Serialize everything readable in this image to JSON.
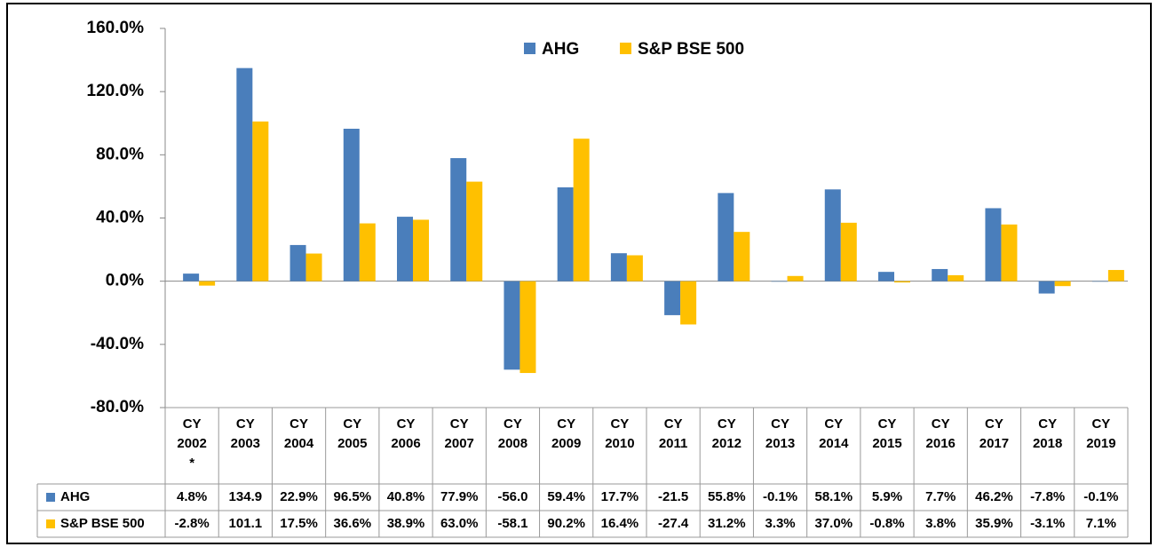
{
  "chart_data": {
    "type": "bar",
    "categories": [
      "CY 2002 *",
      "CY 2003",
      "CY 2004",
      "CY 2005",
      "CY 2006",
      "CY 2007",
      "CY 2008",
      "CY 2009",
      "CY 2010",
      "CY 2011",
      "CY 2012",
      "CY 2013",
      "CY 2014",
      "CY 2015",
      "CY 2016",
      "CY 2017",
      "CY 2018",
      "CY 2019"
    ],
    "series": [
      {
        "name": "AHG",
        "color": "#4a7ebb",
        "values": [
          4.8,
          134.9,
          22.9,
          96.5,
          40.8,
          77.9,
          -56.0,
          59.4,
          17.7,
          -21.5,
          55.8,
          -0.1,
          58.1,
          5.9,
          7.7,
          46.2,
          -7.8,
          -0.1
        ],
        "value_labels": [
          "4.8%",
          "134.9",
          "22.9%",
          "96.5%",
          "40.8%",
          "77.9%",
          "-56.0",
          "59.4%",
          "17.7%",
          "-21.5",
          "55.8%",
          "-0.1%",
          "58.1%",
          "5.9%",
          "7.7%",
          "46.2%",
          "-7.8%",
          "-0.1%"
        ]
      },
      {
        "name": "S&P BSE 500",
        "color": "#ffc000",
        "values": [
          -2.8,
          101.1,
          17.5,
          36.6,
          38.9,
          63.0,
          -58.1,
          90.2,
          16.4,
          -27.4,
          31.2,
          3.3,
          37.0,
          -0.8,
          3.8,
          35.9,
          -3.1,
          7.1
        ],
        "value_labels": [
          "-2.8%",
          "101.1",
          "17.5%",
          "36.6%",
          "38.9%",
          "63.0%",
          "-58.1",
          "90.2%",
          "16.4%",
          "-27.4",
          "31.2%",
          "3.3%",
          "37.0%",
          "-0.8%",
          "3.8%",
          "35.9%",
          "-3.1%",
          "7.1%"
        ]
      }
    ],
    "ylim": [
      -80,
      160
    ],
    "yticks": [
      {
        "value": -80,
        "label": "-80.0%"
      },
      {
        "value": -40,
        "label": "-40.0%"
      },
      {
        "value": 0,
        "label": "0.0%"
      },
      {
        "value": 40,
        "label": "40.0%"
      },
      {
        "value": 80,
        "label": "80.0%"
      },
      {
        "value": 120,
        "label": "120.0%"
      },
      {
        "value": 160,
        "label": "160.0%"
      }
    ],
    "legend": "top",
    "grid": false
  }
}
